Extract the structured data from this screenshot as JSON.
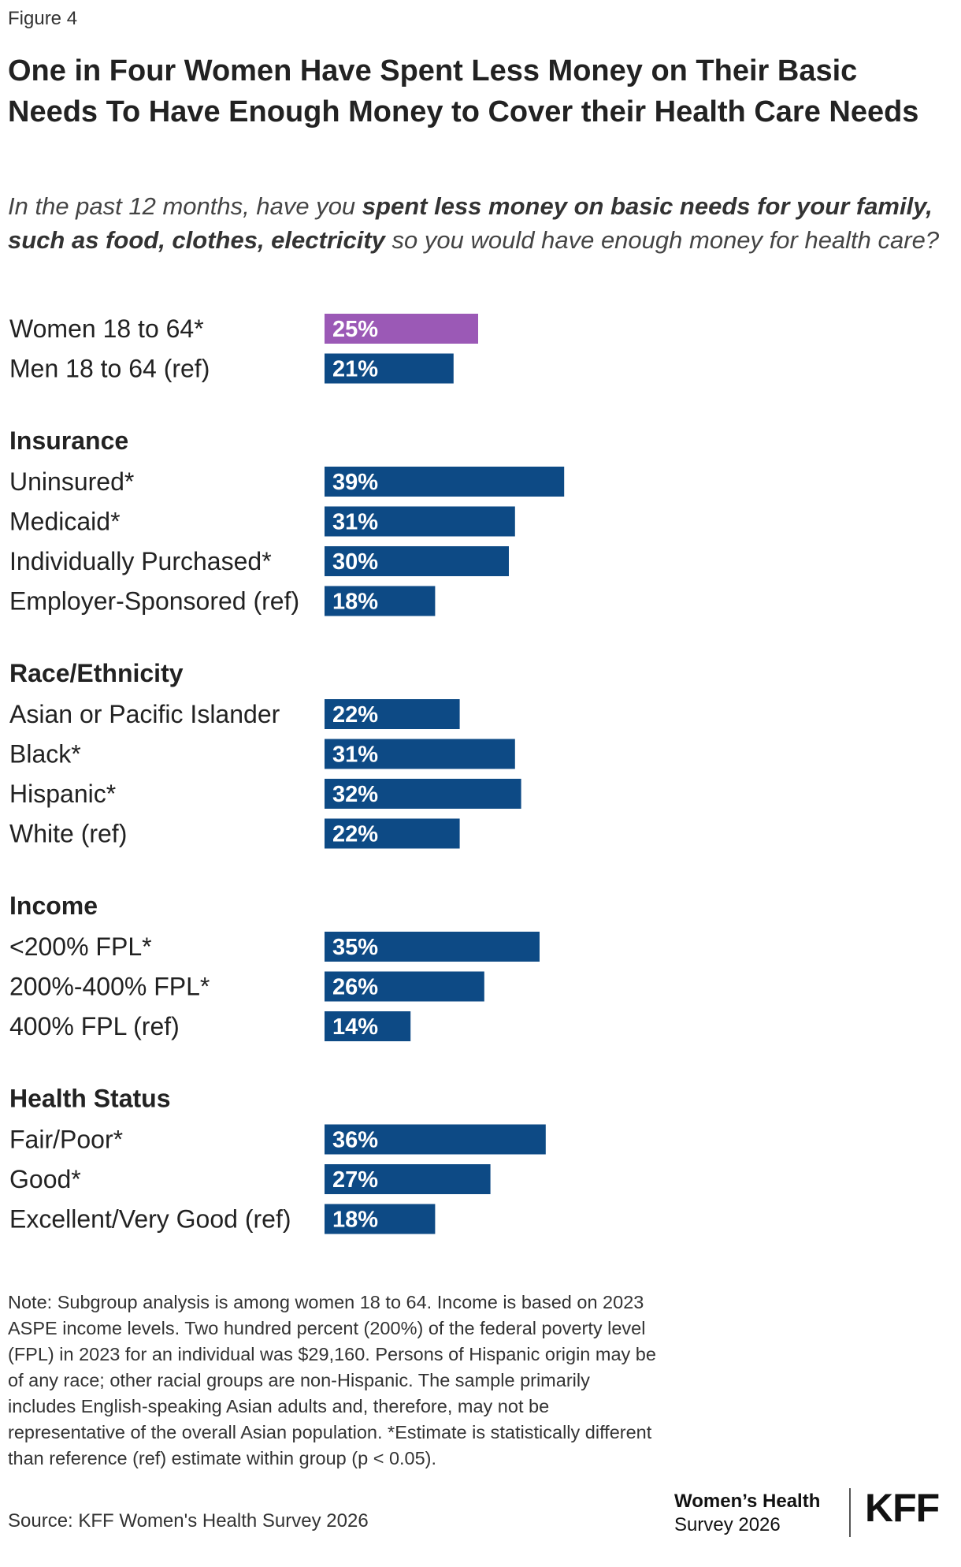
{
  "figure_label": "Figure 4",
  "title": "One in Four Women Have Spent Less Money on Their Basic Needs To Have Enough Money to Cover their Health Care Needs",
  "subtitle": {
    "part1": "In the past 12 months, have you ",
    "emphasis": "spent less money on basic needs for your family, such as food, clothes, electricity",
    "part2": " so you would have enough money for health care?"
  },
  "colors": {
    "women_bar": "#9b59b6",
    "default_bar": "#0d4a85",
    "bar_text": "#ffffff"
  },
  "chart_data": {
    "type": "bar",
    "orientation": "horizontal",
    "value_format": "percent",
    "groups": [
      {
        "name": "",
        "rows": [
          {
            "label": "Women 18 to 64*",
            "value": 25,
            "highlight": true
          },
          {
            "label": "Men 18 to 64 (ref)",
            "value": 21
          }
        ]
      },
      {
        "name": "Insurance",
        "rows": [
          {
            "label": "Uninsured*",
            "value": 39
          },
          {
            "label": "Medicaid*",
            "value": 31
          },
          {
            "label": "Individually Purchased*",
            "value": 30
          },
          {
            "label": "Employer-Sponsored (ref)",
            "value": 18
          }
        ]
      },
      {
        "name": "Race/Ethnicity",
        "rows": [
          {
            "label": "Asian or Pacific Islander",
            "value": 22
          },
          {
            "label": "Black*",
            "value": 31
          },
          {
            "label": "Hispanic*",
            "value": 32
          },
          {
            "label": "White (ref)",
            "value": 22
          }
        ]
      },
      {
        "name": "Income",
        "rows": [
          {
            "label": "<200% FPL*",
            "value": 35
          },
          {
            "label": "200%-400% FPL*",
            "value": 26
          },
          {
            "label": "400% FPL (ref)",
            "value": 14
          }
        ]
      },
      {
        "name": "Health Status",
        "rows": [
          {
            "label": "Fair/Poor*",
            "value": 36
          },
          {
            "label": "Good*",
            "value": 27
          },
          {
            "label": "Excellent/Very Good (ref)",
            "value": 18
          }
        ]
      }
    ]
  },
  "note": "Note: Subgroup analysis is among women 18 to 64. Income is based on 2023 ASPE income levels. Two hundred percent (200%) of the federal poverty level (FPL) in 2023 for an individual was $29,160. Persons of Hispanic origin may be of any race; other racial groups are non-Hispanic. The sample primarily includes English-speaking Asian adults and, therefore, may not be representative of the overall Asian population. *Estimate is statistically different than reference (ref) estimate within group (p < 0.05).",
  "source": "Source: KFF Women's Health Survey 2026",
  "logo": {
    "survey_line1": "Women’s Health",
    "survey_line2": "Survey 2026",
    "org": "KFF"
  }
}
